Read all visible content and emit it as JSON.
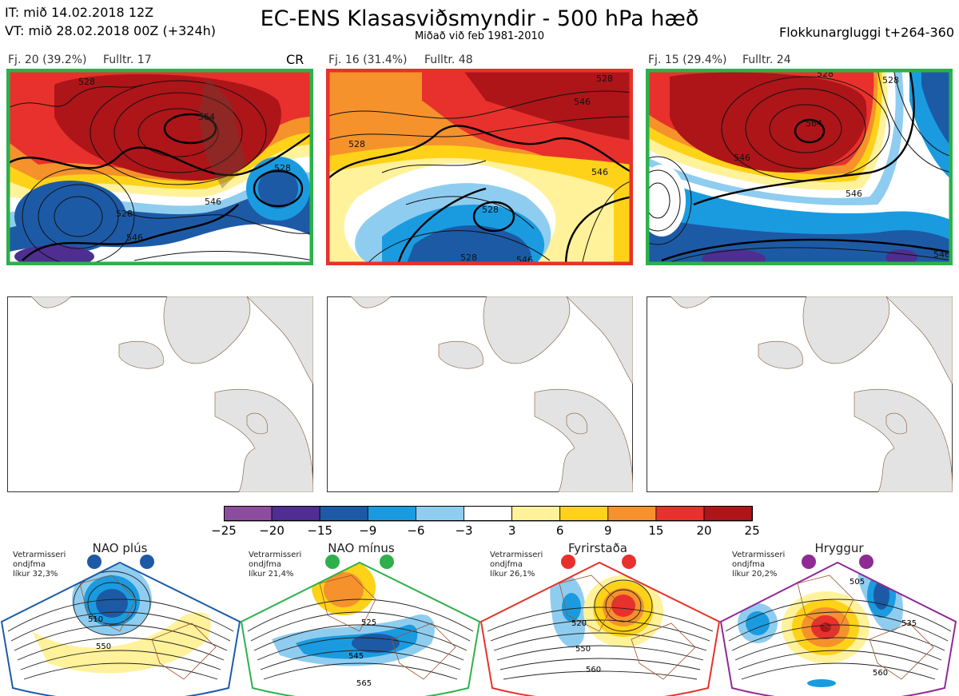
{
  "header": {
    "it": "IT: mið 14.02.2018 12Z",
    "vt": "VT: mið 28.02.2018 00Z  (+324h)",
    "title": "EC-ENS Klasasviðsmyndir - 500 hPa hæð",
    "subtitle": "Miðað við feb 1981-2010",
    "window": "Flokkunargluggi t+264-360"
  },
  "panels": [
    {
      "count": "Fj. 20 (39.2%)",
      "rep": "Fulltr. 17",
      "tag": "CR",
      "border_color": "#2db04b",
      "contour_labels": [
        "528",
        "564",
        "546",
        "528",
        "528",
        "546"
      ]
    },
    {
      "count": "Fj. 16 (31.4%)",
      "rep": "Fulltr. 48",
      "tag": "",
      "border_color": "#e8312c",
      "contour_labels": [
        "528",
        "546",
        "546",
        "528",
        "528",
        "546",
        "528"
      ]
    },
    {
      "count": "Fj. 15 (29.4%)",
      "rep": "Fulltr. 24",
      "tag": "",
      "border_color": "#2db04b",
      "contour_labels": [
        "564",
        "546",
        "546",
        "528",
        "528",
        "546"
      ]
    }
  ],
  "colorbar": {
    "ticks": [
      "−25",
      "−20",
      "−15",
      "−9",
      "−6",
      "−3",
      "3",
      "6",
      "9",
      "15",
      "20",
      "25"
    ],
    "colors": [
      "#8b4d9e",
      "#4f2d91",
      "#1d5aa6",
      "#1a9be0",
      "#8fcdf0",
      "#ffffff",
      "#fff29a",
      "#ffd21a",
      "#f5922b",
      "#e8312c",
      "#ad1519"
    ]
  },
  "regimes": [
    {
      "name": "NAO plús",
      "note": [
        "Vetrarmisseri",
        "ondjfma",
        "líkur 32,3%"
      ],
      "color": "#1d5aa6",
      "labels": [
        "510",
        "550"
      ]
    },
    {
      "name": "NAO mínus",
      "note": [
        "Vetrarmisseri",
        "ondjfma",
        "líkur 21,4%"
      ],
      "color": "#2db04b",
      "labels": [
        "525",
        "545",
        "565"
      ]
    },
    {
      "name": "Fyrirstaða",
      "note": [
        "Vetrarmisseri",
        "ondjfma",
        "líkur 26,1%"
      ],
      "color": "#e8312c",
      "labels": [
        "520",
        "550",
        "560"
      ]
    },
    {
      "name": "Hryggur",
      "note": [
        "Vetrarmisseri",
        "ondjfma",
        "líkur 20,2%"
      ],
      "color": "#8e2b93",
      "labels": [
        "505",
        "535",
        "560"
      ]
    }
  ]
}
